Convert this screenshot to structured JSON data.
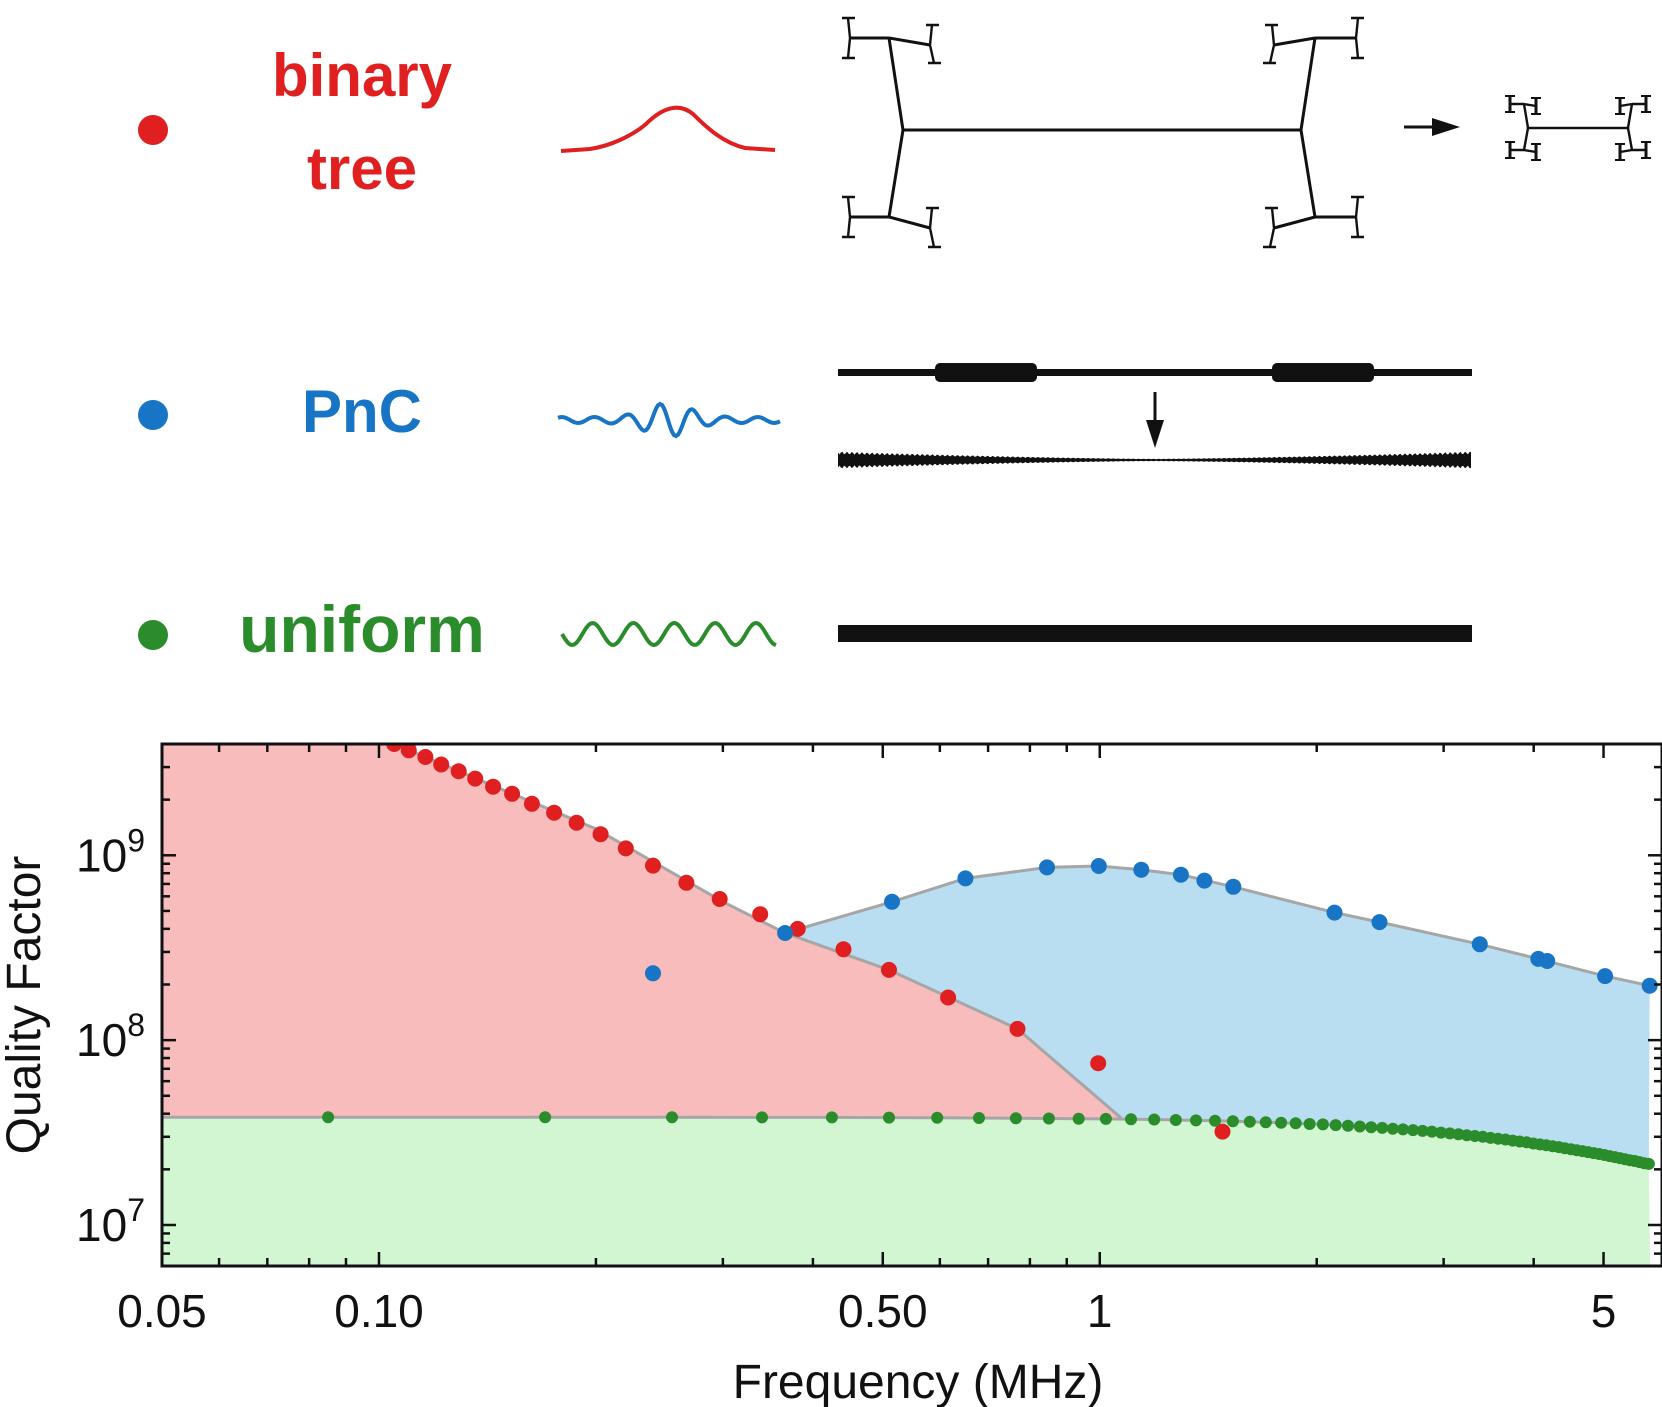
{
  "colors": {
    "binary_tree": "#e02020",
    "pnc": "#1874c4",
    "uniform": "#2a8c2a",
    "fill_binary_tree": "#f9bcbc",
    "fill_pnc": "#b9def2",
    "fill_uniform": "#d2f6d2",
    "envelope": "#a6a6a6"
  },
  "legend": [
    {
      "key": "binary_tree",
      "label_lines": [
        "binary",
        "tree"
      ],
      "icon": "gaussian-mode-icon",
      "structure": "fractal-tree-icon"
    },
    {
      "key": "pnc",
      "label_lines": [
        "PnC"
      ],
      "icon": "localized-mode-icon",
      "structure": "phononic-crystal-icon"
    },
    {
      "key": "uniform",
      "label_lines": [
        "uniform"
      ],
      "icon": "sinusoid-mode-icon",
      "structure": "uniform-string-icon"
    }
  ],
  "chart_data": {
    "type": "scatter",
    "xlabel": "Frequency (MHz)",
    "ylabel": "Quality Factor",
    "xscale": "log",
    "yscale": "log",
    "xlim": [
      0.05,
      5.8
    ],
    "ylim": [
      6000000,
      4000000000
    ],
    "xticks": [
      {
        "value": 0.05,
        "label": "0.05"
      },
      {
        "value": 0.1,
        "label": "0.10"
      },
      {
        "value": 0.5,
        "label": "0.50"
      },
      {
        "value": 1,
        "label": "1"
      },
      {
        "value": 5,
        "label": "5"
      }
    ],
    "yticks": [
      {
        "value": 10000000,
        "base": "10",
        "exp": "7"
      },
      {
        "value": 100000000,
        "base": "10",
        "exp": "8"
      },
      {
        "value": 1000000000,
        "base": "10",
        "exp": "9"
      }
    ],
    "series": [
      {
        "key": "binary_tree",
        "x": [
          0.105,
          0.11,
          0.116,
          0.122,
          0.129,
          0.136,
          0.144,
          0.153,
          0.163,
          0.175,
          0.188,
          0.203,
          0.22,
          0.24,
          0.267,
          0.297,
          0.338,
          0.381,
          0.441,
          0.51,
          0.616,
          0.769,
          0.995,
          1.48
        ],
        "y": [
          4000000000,
          3700000000,
          3400000000,
          3100000000,
          2850000000,
          2600000000,
          2350000000,
          2150000000,
          1900000000,
          1700000000,
          1500000000,
          1300000000,
          1090000000,
          880000000,
          710000000,
          580000000,
          480000000,
          400000000,
          310000000,
          240000000,
          170000000,
          115000000,
          75000000,
          32000000
        ]
      },
      {
        "key": "pnc",
        "x": [
          0.24,
          0.366,
          0.515,
          0.651,
          0.845,
          0.997,
          1.142,
          1.296,
          1.397,
          1.532,
          2.117,
          2.444,
          3.367,
          4.059,
          4.176,
          5.025,
          5.795
        ],
        "y": [
          230000000,
          380000000,
          560000000,
          750000000,
          860000000,
          875000000,
          835000000,
          785000000,
          730000000,
          675000000,
          490000000,
          435000000,
          330000000,
          275000000,
          268000000,
          222000000,
          197000000
        ]
      },
      {
        "key": "uniform",
        "x": [
          0.085,
          0.17,
          0.255,
          0.34,
          0.425,
          0.51,
          0.595,
          0.68,
          0.765,
          0.85,
          0.935,
          1.02,
          1.105,
          1.19,
          1.275,
          1.36,
          1.445,
          1.53,
          1.615,
          1.7,
          1.785,
          1.87,
          1.955,
          2.04,
          2.125,
          2.21,
          2.295,
          2.38,
          2.465,
          2.55,
          2.635,
          2.72,
          2.805,
          2.89,
          2.975,
          3.06,
          3.145,
          3.23,
          3.315,
          3.4,
          3.485,
          3.57,
          3.655,
          3.74,
          3.825,
          3.91,
          3.995,
          4.08,
          4.165,
          4.25,
          4.335,
          4.42,
          4.505,
          4.59,
          4.675,
          4.76,
          4.845,
          4.93,
          5.015,
          5.1,
          5.185,
          5.27,
          5.355,
          5.44,
          5.525,
          5.61,
          5.695,
          5.78
        ],
        "y": [
          38300000,
          38300000,
          38300000,
          38200000,
          38200000,
          38100000,
          38000000,
          37900000,
          37800000,
          37700000,
          37600000,
          37500000,
          37300000,
          37200000,
          37000000,
          36800000,
          36600000,
          36400000,
          36200000,
          36000000,
          35700000,
          35500000,
          35200000,
          35000000,
          34700000,
          34400000,
          34100000,
          33800000,
          33500000,
          33200000,
          32900000,
          32600000,
          32300000,
          32000000,
          31600000,
          31300000,
          31000000,
          30600000,
          30300000,
          30000000,
          29600000,
          29300000,
          29000000,
          28600000,
          28300000,
          28000000,
          27600000,
          27300000,
          27000000,
          26700000,
          26400000,
          26000000,
          25700000,
          25400000,
          25100000,
          24800000,
          24500000,
          24200000,
          23900000,
          23600000,
          23300000,
          23000000,
          22700000,
          22400000,
          22200000,
          21900000,
          21600000,
          21400000
        ]
      }
    ],
    "envelope": {
      "x": [
        0.05,
        0.105,
        0.2,
        0.3,
        0.366,
        0.515,
        0.651,
        0.845,
        0.997,
        1.142,
        1.296,
        1.532,
        2.117,
        2.444,
        3.367,
        4.059,
        5.025,
        5.795
      ],
      "y": [
        4000000000,
        4000000000,
        1390000000,
        560000000,
        380000000,
        560000000,
        750000000,
        860000000,
        875000000,
        835000000,
        785000000,
        675000000,
        490000000,
        435000000,
        330000000,
        275000000,
        222000000,
        197000000
      ]
    },
    "crossover": {
      "x": [
        0.366,
        0.51,
        0.769,
        1.07
      ],
      "y": [
        380000000,
        240000000,
        115000000,
        38000000
      ]
    },
    "grid": false,
    "legend_position": "above plot"
  }
}
